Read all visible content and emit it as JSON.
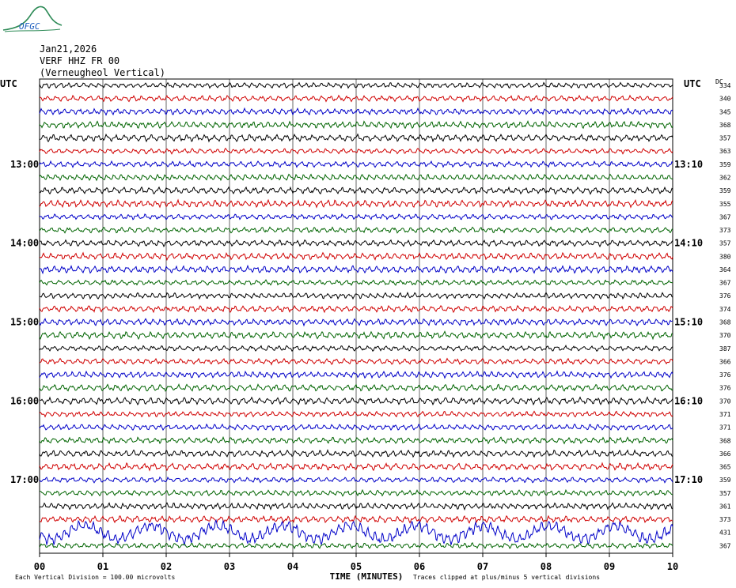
{
  "logo": {
    "text": "OFGC",
    "colors": {
      "hill": "#2e8b57",
      "text": "#1f5fbf"
    }
  },
  "header": {
    "date": "Jan21,2026",
    "station": "VERF HHZ FR 00",
    "location": "(Verneugheol Vertical)"
  },
  "chart_data": {
    "type": "line",
    "title": "",
    "xlabel": "TIME (MINUTES)",
    "left_axis_label": "UTC",
    "right_axis_label": "UTC",
    "dc_label": "DC",
    "x_ticks": [
      "00",
      "01",
      "02",
      "03",
      "04",
      "05",
      "06",
      "07",
      "08",
      "09",
      "10"
    ],
    "xlim": [
      0,
      10
    ],
    "left_time_labels": [
      {
        "row": 6,
        "label": "13:00"
      },
      {
        "row": 12,
        "label": "14:00"
      },
      {
        "row": 18,
        "label": "15:00"
      },
      {
        "row": 24,
        "label": "16:00"
      },
      {
        "row": 30,
        "label": "17:00"
      }
    ],
    "right_time_labels": [
      {
        "row": 6,
        "label": "13:10"
      },
      {
        "row": 12,
        "label": "14:10"
      },
      {
        "row": 18,
        "label": "15:10"
      },
      {
        "row": 24,
        "label": "16:10"
      },
      {
        "row": 30,
        "label": "17:10"
      }
    ],
    "trace_colors": [
      "#000000",
      "#d00000",
      "#0000c8",
      "#006400"
    ],
    "dc_offsets": [
      334,
      340,
      345,
      368,
      357,
      363,
      359,
      362,
      359,
      355,
      367,
      373,
      357,
      380,
      364,
      367,
      376,
      374,
      368,
      370,
      387,
      366,
      376,
      376,
      370,
      371,
      371,
      368,
      366,
      365,
      359,
      357,
      361,
      373,
      431,
      367
    ],
    "grid": true,
    "footer_left": "Each Vertical Division =  100.00 microvolts",
    "footer_right": "Traces clipped at plus/minus 5 vertical divisions"
  }
}
